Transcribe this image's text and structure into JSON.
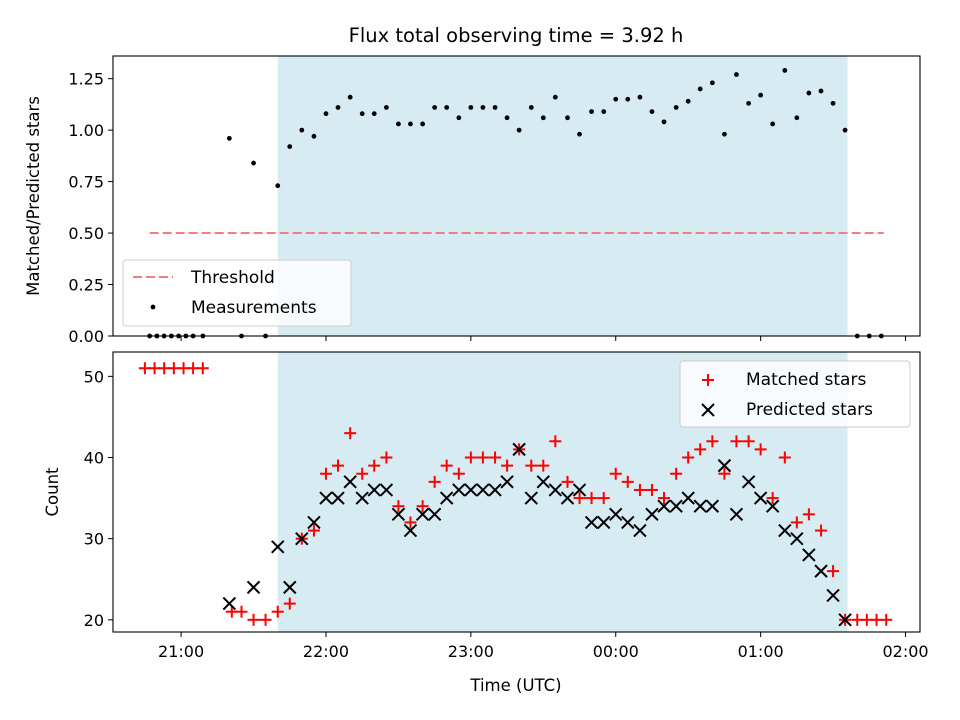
{
  "chart_data": [
    {
      "type": "scatter",
      "title": "Flux total observing time = 3.92 h",
      "xlabel": "",
      "ylabel": "Matched/Predicted stars",
      "ylim": [
        0,
        1.36
      ],
      "yticks": [
        0.0,
        0.25,
        0.5,
        0.75,
        1.0,
        1.25
      ],
      "ytick_labels": [
        "0.00",
        "0.25",
        "0.50",
        "0.75",
        "1.00",
        "1.25"
      ],
      "x_range_hours": [
        20.53,
        26.1
      ],
      "xticks": [
        21,
        22,
        23,
        24,
        25,
        26
      ],
      "xtick_labels": [
        "",
        "",
        "",
        "",
        "",
        ""
      ],
      "shaded_span": [
        21.667,
        25.6
      ],
      "legend": {
        "placement": "lower-left",
        "entries": [
          "Threshold",
          "Measurements"
        ]
      },
      "threshold": {
        "name": "Threshold",
        "y": 0.5,
        "x_start": 20.783,
        "x_end": 25.85,
        "color": "#f08080"
      },
      "series": [
        {
          "name": "Measurements",
          "color": "#000000",
          "x": [
            20.783,
            20.833,
            20.883,
            20.933,
            20.983,
            21.033,
            21.083,
            21.15,
            21.333,
            21.417,
            21.5,
            21.583,
            21.667,
            21.75,
            21.833,
            21.917,
            22.0,
            22.083,
            22.167,
            22.25,
            22.333,
            22.417,
            22.5,
            22.583,
            22.667,
            22.75,
            22.833,
            22.917,
            23.0,
            23.083,
            23.167,
            23.25,
            23.333,
            23.417,
            23.5,
            23.583,
            23.667,
            23.75,
            23.833,
            23.917,
            24.0,
            24.083,
            24.167,
            24.25,
            24.333,
            24.417,
            24.5,
            24.583,
            24.667,
            24.75,
            24.833,
            24.917,
            25.0,
            25.083,
            25.167,
            25.25,
            25.333,
            25.417,
            25.5,
            25.583,
            25.667,
            25.75,
            25.833
          ],
          "y": [
            0.0,
            0.0,
            0.0,
            0.0,
            0.0,
            0.0,
            0.0,
            0.0,
            0.96,
            0.0,
            0.84,
            0.0,
            0.73,
            0.92,
            1.0,
            0.97,
            1.08,
            1.11,
            1.16,
            1.08,
            1.08,
            1.11,
            1.03,
            1.03,
            1.03,
            1.11,
            1.11,
            1.06,
            1.11,
            1.11,
            1.11,
            1.06,
            1.0,
            1.11,
            1.06,
            1.16,
            1.06,
            0.98,
            1.09,
            1.09,
            1.15,
            1.15,
            1.16,
            1.09,
            1.04,
            1.11,
            1.14,
            1.2,
            1.23,
            0.98,
            1.27,
            1.13,
            1.17,
            1.03,
            1.29,
            1.06,
            1.18,
            1.19,
            1.13,
            1.0,
            0.0,
            0.0,
            0.0
          ]
        }
      ]
    },
    {
      "type": "scatter",
      "title": "",
      "xlabel": "Time (UTC)",
      "ylabel": "Count",
      "ylim": [
        18.5,
        53
      ],
      "yticks": [
        20,
        30,
        40,
        50
      ],
      "ytick_labels": [
        "20",
        "30",
        "40",
        "50"
      ],
      "x_range_hours": [
        20.53,
        26.1
      ],
      "xticks": [
        21,
        22,
        23,
        24,
        25,
        26
      ],
      "xtick_labels": [
        "21:00",
        "22:00",
        "23:00",
        "00:00",
        "01:00",
        "02:00"
      ],
      "shaded_span": [
        21.667,
        25.6
      ],
      "legend": {
        "placement": "upper-right",
        "entries": [
          "Matched stars",
          "Predicted stars"
        ]
      },
      "series": [
        {
          "name": "Matched stars",
          "color": "#ff0000",
          "marker": "plus",
          "x": [
            20.75,
            20.817,
            20.883,
            20.95,
            21.017,
            21.083,
            21.15,
            21.35,
            21.417,
            21.5,
            21.583,
            21.667,
            21.75,
            21.833,
            21.917,
            22.0,
            22.083,
            22.167,
            22.25,
            22.333,
            22.417,
            22.5,
            22.583,
            22.667,
            22.75,
            22.833,
            22.917,
            23.0,
            23.083,
            23.167,
            23.25,
            23.333,
            23.417,
            23.5,
            23.583,
            23.667,
            23.75,
            23.833,
            23.917,
            24.0,
            24.083,
            24.167,
            24.25,
            24.333,
            24.417,
            24.5,
            24.583,
            24.667,
            24.75,
            24.833,
            24.917,
            25.0,
            25.083,
            25.167,
            25.25,
            25.333,
            25.417,
            25.5,
            25.583,
            25.667,
            25.733,
            25.8,
            25.867
          ],
          "y": [
            51,
            51,
            51,
            51,
            51,
            51,
            51,
            21,
            21,
            20,
            20,
            21,
            22,
            30,
            31,
            38,
            39,
            43,
            38,
            39,
            40,
            34,
            32,
            34,
            37,
            39,
            38,
            40,
            40,
            40,
            39,
            41,
            39,
            39,
            42,
            37,
            35,
            35,
            35,
            38,
            37,
            36,
            36,
            35,
            38,
            40,
            41,
            42,
            38,
            42,
            42,
            41,
            35,
            40,
            32,
            33,
            31,
            26,
            20,
            20,
            20,
            20,
            20
          ]
        },
        {
          "name": "Predicted stars",
          "color": "#000000",
          "marker": "x",
          "x": [
            21.333,
            21.5,
            21.667,
            21.75,
            21.833,
            21.917,
            22.0,
            22.083,
            22.167,
            22.25,
            22.333,
            22.417,
            22.5,
            22.583,
            22.667,
            22.75,
            22.833,
            22.917,
            23.0,
            23.083,
            23.167,
            23.25,
            23.333,
            23.417,
            23.5,
            23.583,
            23.667,
            23.75,
            23.833,
            23.917,
            24.0,
            24.083,
            24.167,
            24.25,
            24.333,
            24.417,
            24.5,
            24.583,
            24.667,
            24.75,
            24.833,
            24.917,
            25.0,
            25.083,
            25.167,
            25.25,
            25.333,
            25.417,
            25.5,
            25.583
          ],
          "y": [
            22,
            24,
            29,
            24,
            30,
            32,
            35,
            35,
            37,
            35,
            36,
            36,
            33,
            31,
            33,
            33,
            35,
            36,
            36,
            36,
            36,
            37,
            41,
            35,
            37,
            36,
            35,
            36,
            32,
            32,
            33,
            32,
            31,
            33,
            34,
            34,
            35,
            34,
            34,
            39,
            33,
            37,
            35,
            34,
            31,
            30,
            28,
            26,
            23,
            20
          ]
        }
      ]
    }
  ]
}
